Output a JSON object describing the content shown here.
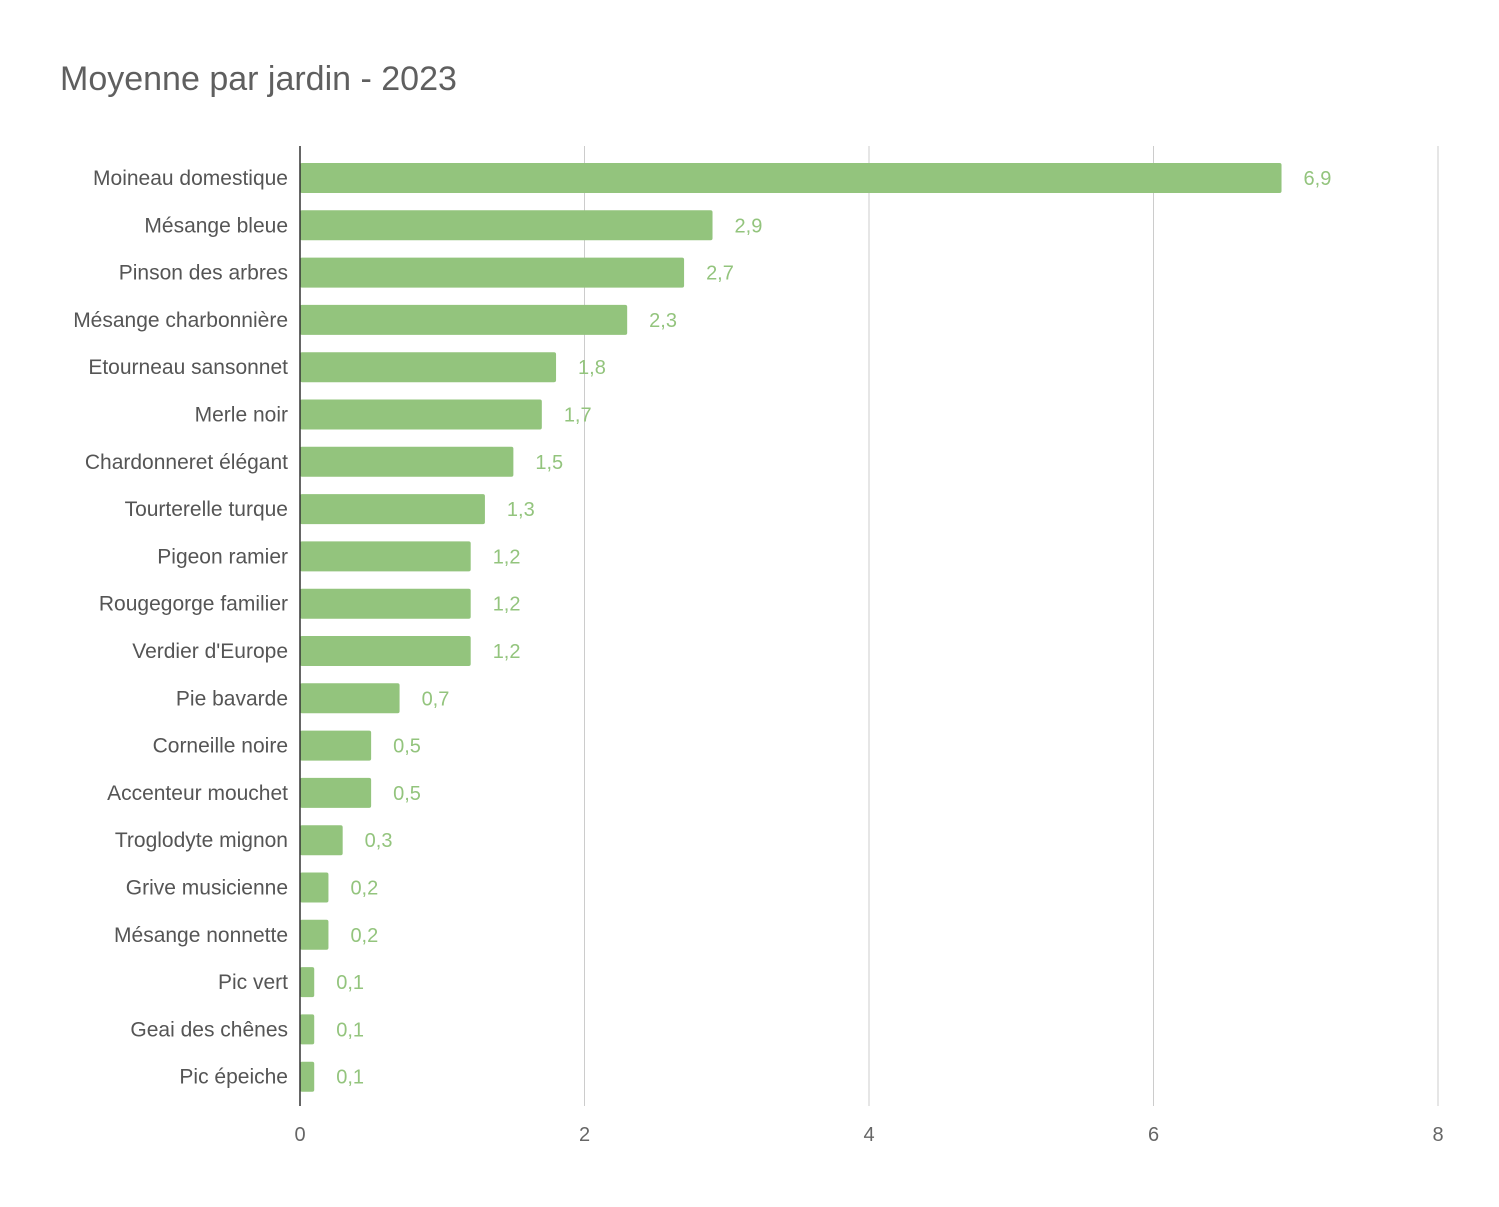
{
  "chart_data": {
    "type": "bar",
    "orientation": "horizontal",
    "title": "Moyenne par jardin - 2023",
    "xlabel": "",
    "ylabel": "",
    "categories": [
      "Moineau domestique",
      "Mésange bleue",
      "Pinson des arbres",
      "Mésange charbonnière",
      "Etourneau sansonnet",
      "Merle noir",
      "Chardonneret élégant",
      "Tourterelle turque",
      "Pigeon ramier",
      "Rougegorge familier",
      "Verdier d'Europe",
      "Pie bavarde",
      "Corneille noire",
      "Accenteur mouchet",
      "Troglodyte mignon",
      "Grive musicienne",
      "Mésange nonnette",
      "Pic vert",
      "Geai des chênes",
      "Pic épeiche"
    ],
    "values": [
      6.9,
      2.9,
      2.7,
      2.3,
      1.8,
      1.7,
      1.5,
      1.3,
      1.2,
      1.2,
      1.2,
      0.7,
      0.5,
      0.5,
      0.3,
      0.2,
      0.2,
      0.1,
      0.1,
      0.1
    ],
    "value_labels": [
      "6,9",
      "2,9",
      "2,7",
      "2,3",
      "1,8",
      "1,7",
      "1,5",
      "1,3",
      "1,2",
      "1,2",
      "1,2",
      "0,7",
      "0,5",
      "0,5",
      "0,3",
      "0,2",
      "0,2",
      "0,1",
      "0,1",
      "0,1"
    ],
    "xlim": [
      0,
      8
    ],
    "xticks": [
      0,
      2,
      4,
      6,
      8
    ],
    "xtick_labels": [
      "0",
      "2",
      "4",
      "6",
      "8"
    ],
    "grid": true,
    "legend": "none",
    "colors": {
      "bar": "#93c47d",
      "value_label": "#93c47d",
      "grid": "#cccccc",
      "axis": "#333333"
    }
  }
}
